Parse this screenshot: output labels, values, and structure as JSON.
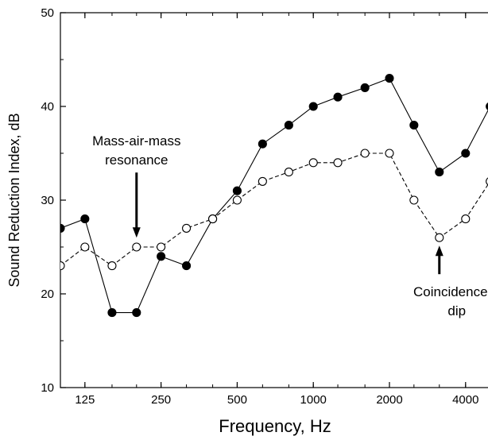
{
  "chart_data": {
    "type": "line",
    "title": "",
    "xlabel": "Frequency, Hz",
    "ylabel": "Sound Reduction Index, dB",
    "x_scale": "log",
    "ylim": [
      10,
      50
    ],
    "y_ticks": [
      10,
      20,
      30,
      40,
      50
    ],
    "x_tick_labels": [
      "125",
      "250",
      "500",
      "1000",
      "2000",
      "4000"
    ],
    "x": [
      100,
      125,
      160,
      200,
      250,
      315,
      400,
      500,
      630,
      800,
      1000,
      1250,
      1600,
      2000,
      2500,
      3150,
      4000,
      5000
    ],
    "series": [
      {
        "marker": "filled-circle",
        "line": "solid",
        "color": "#000000",
        "values": [
          27,
          28,
          18,
          18,
          24,
          23,
          28,
          31,
          36,
          38,
          40,
          41,
          42,
          43,
          38,
          33,
          35,
          40
        ]
      },
      {
        "marker": "open-circle",
        "line": "dashed",
        "color": "#000000",
        "values": [
          23,
          25,
          23,
          25,
          25,
          27,
          28,
          30,
          32,
          33,
          34,
          34,
          35,
          35,
          30,
          26,
          28,
          32
        ]
      }
    ],
    "annotations": [
      {
        "text_lines": [
          "Mass-air-mass",
          "resonance"
        ],
        "arrow": "down",
        "at_x": 200,
        "at_y": 26
      },
      {
        "text_lines": [
          "Coincidence",
          "dip"
        ],
        "arrow": "up",
        "at_x": 3150,
        "at_y": 26
      }
    ],
    "grid": false,
    "legend": "none"
  }
}
